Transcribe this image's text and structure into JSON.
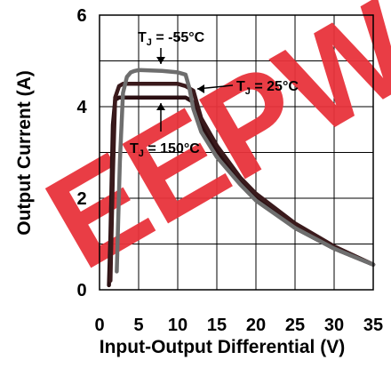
{
  "colors": {
    "watermark": "#e8333c",
    "series_dark": "#2a0f12",
    "series_mid": "#3a1a1c",
    "series_light": "#6e6e6e"
  },
  "watermark_text": "EEPW",
  "chart_data": {
    "type": "line",
    "xlabel": "Input-Output Differential (V)",
    "ylabel": "Output Current (A)",
    "xlim": [
      0,
      35
    ],
    "ylim": [
      0,
      6
    ],
    "xticks": [
      0,
      5,
      10,
      15,
      20,
      25,
      30,
      35
    ],
    "yticks": [
      0,
      2,
      4,
      6
    ],
    "grid": true,
    "annotations": [
      {
        "prefix": "T",
        "sub": "J",
        "suffix": " = -55°C"
      },
      {
        "prefix": "T",
        "sub": "J",
        "suffix": " = 25°C"
      },
      {
        "prefix": "T",
        "sub": "J",
        "suffix": " = 150°C"
      }
    ],
    "series": [
      {
        "color_key": "series_dark",
        "x": [
          1.2,
          1.4,
          1.7,
          2.0,
          2.5,
          3,
          5,
          8,
          10,
          11,
          12,
          13,
          15,
          18,
          20,
          25,
          30,
          35
        ],
        "y": [
          0.1,
          1.2,
          3.6,
          4.15,
          4.2,
          4.2,
          4.2,
          4.2,
          4.2,
          4.2,
          4.1,
          3.6,
          3.05,
          2.35,
          2.0,
          1.35,
          0.9,
          0.55
        ]
      },
      {
        "color_key": "series_mid",
        "x": [
          1.4,
          1.7,
          2.0,
          2.5,
          3,
          5,
          8,
          10,
          11,
          12,
          13,
          15,
          18,
          20,
          25,
          30,
          35
        ],
        "y": [
          0.2,
          2.5,
          4.2,
          4.45,
          4.5,
          4.5,
          4.5,
          4.5,
          4.45,
          4.35,
          3.75,
          3.15,
          2.45,
          2.1,
          1.45,
          0.95,
          0.55
        ]
      },
      {
        "color_key": "series_light",
        "x": [
          2.2,
          2.6,
          3,
          3.5,
          4,
          4.5,
          5,
          8,
          10,
          11,
          11.5,
          12,
          13,
          15,
          18,
          20,
          25,
          30,
          35
        ],
        "y": [
          0.4,
          2.8,
          4.3,
          4.65,
          4.75,
          4.78,
          4.8,
          4.78,
          4.75,
          4.7,
          4.4,
          3.95,
          3.45,
          2.9,
          2.3,
          1.95,
          1.35,
          0.9,
          0.55
        ]
      }
    ]
  }
}
